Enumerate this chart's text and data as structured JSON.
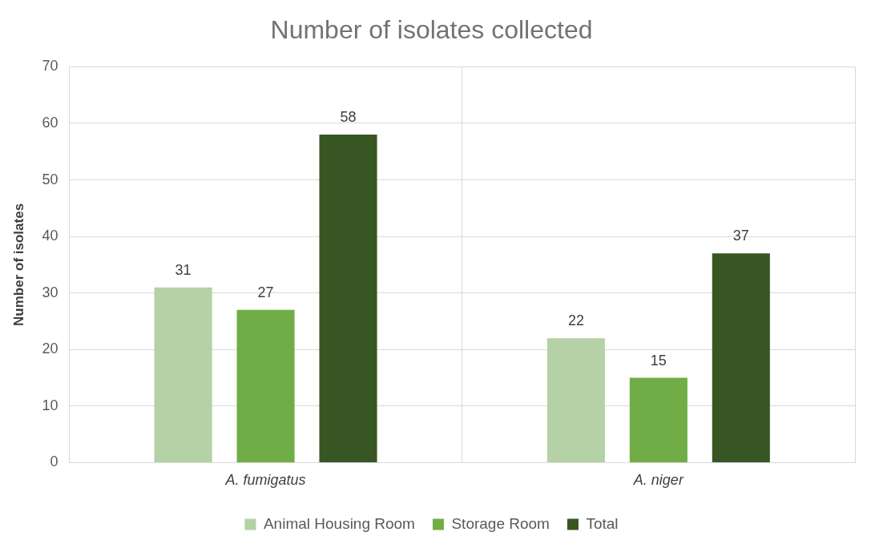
{
  "chart_data": {
    "type": "bar",
    "title": "Number of isolates collected",
    "ylabel": "Number of isolates",
    "categories": [
      "A. fumigatus",
      "A. niger"
    ],
    "series": [
      {
        "name": "Animal Housing Room",
        "color": "#b5d1a6",
        "values": [
          31,
          22
        ]
      },
      {
        "name": "Storage Room",
        "color": "#70ad47",
        "values": [
          27,
          15
        ]
      },
      {
        "name": "Total",
        "color": "#375623",
        "values": [
          58,
          37
        ]
      }
    ],
    "ylim": [
      0,
      70
    ],
    "yticks": [
      0,
      10,
      20,
      30,
      40,
      50,
      60,
      70
    ],
    "grid": true,
    "legend": "bottom",
    "data_labels": true
  }
}
